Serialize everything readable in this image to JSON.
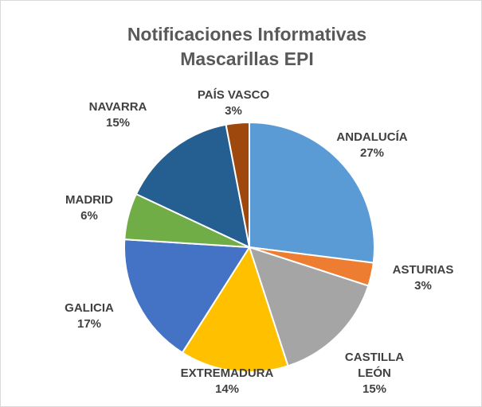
{
  "chart_data": {
    "type": "pie",
    "title": "Notificaciones Informativas Mascarillas EPI",
    "categories": [
      "ANDALUCÍA",
      "ASTURIAS",
      "CASTILLA LEÓN",
      "EXTREMADURA",
      "GALICIA",
      "MADRID",
      "NAVARRA",
      "PAÍS VASCO"
    ],
    "values": [
      27,
      3,
      15,
      14,
      17,
      6,
      15,
      3
    ],
    "value_labels": [
      "27%",
      "3%",
      "15%",
      "14%",
      "17%",
      "6%",
      "15%",
      "3%"
    ],
    "colors": [
      "#5b9bd5",
      "#ed7d31",
      "#a5a5a5",
      "#ffc000",
      "#4472c4",
      "#70ad47",
      "#255e91",
      "#9e480e"
    ]
  }
}
